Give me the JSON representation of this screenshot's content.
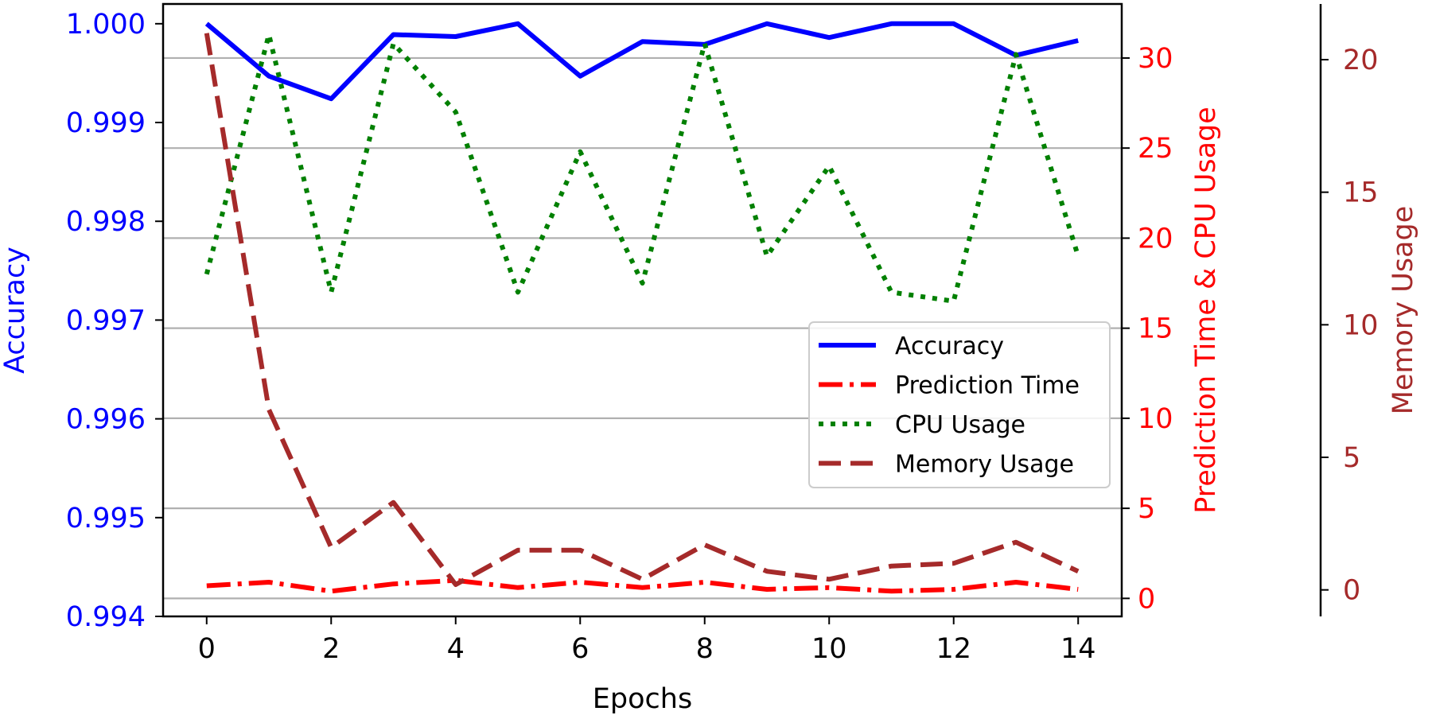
{
  "chart_data": {
    "type": "line",
    "x": [
      0,
      1,
      2,
      3,
      4,
      5,
      6,
      7,
      8,
      9,
      10,
      11,
      12,
      13,
      14
    ],
    "xlabel": "Epochs",
    "xlim": [
      -0.7,
      14.7
    ],
    "xticks": [
      0,
      2,
      4,
      6,
      8,
      10,
      12,
      14
    ],
    "grid": "horizontal, right-axis ticks",
    "legend_position": "center-right",
    "axes": {
      "left": {
        "label": "Accuracy",
        "color": "#0000ff",
        "ylim": [
          0.994,
          1.0002
        ],
        "ticks": [
          0.994,
          0.995,
          0.996,
          0.997,
          0.998,
          0.999,
          1.0
        ],
        "tick_labels": [
          "0.994",
          "0.995",
          "0.996",
          "0.997",
          "0.998",
          "0.999",
          "1.000"
        ]
      },
      "right": {
        "label": "Prediction Time & CPU Usage",
        "color": "#ff0000",
        "ylim": [
          -1.0,
          33.0
        ],
        "ticks": [
          0,
          5,
          10,
          15,
          20,
          25,
          30
        ],
        "tick_labels": [
          "0",
          "5",
          "10",
          "15",
          "20",
          "25",
          "30"
        ]
      },
      "right2": {
        "label": "Memory Usage",
        "color": "#a52a2a",
        "ylim": [
          -1.0,
          22.1
        ],
        "ticks": [
          0,
          5,
          10,
          15,
          20
        ],
        "tick_labels": [
          "0",
          "5",
          "10",
          "15",
          "20"
        ]
      }
    },
    "series": [
      {
        "name": "Accuracy",
        "axis": "left",
        "color": "#0000ff",
        "style": "solid",
        "values": [
          1.0,
          0.99947,
          0.99924,
          0.99989,
          0.99987,
          1.0,
          0.99947,
          0.99982,
          0.99979,
          1.0,
          0.99986,
          1.0,
          1.0,
          0.99968,
          0.99983
        ]
      },
      {
        "name": "Prediction Time",
        "axis": "right",
        "color": "#ff0000",
        "style": "dashdot",
        "values": [
          0.7,
          0.9,
          0.4,
          0.8,
          1.0,
          0.6,
          0.9,
          0.6,
          0.9,
          0.5,
          0.6,
          0.4,
          0.5,
          0.9,
          0.5
        ]
      },
      {
        "name": "CPU Usage",
        "axis": "right",
        "color": "#008000",
        "style": "dotted",
        "values": [
          18.0,
          31.3,
          17.0,
          30.8,
          27.0,
          17.0,
          24.8,
          17.5,
          30.8,
          19.0,
          24.0,
          17.0,
          16.5,
          30.2,
          19.0
        ]
      },
      {
        "name": "Memory Usage",
        "axis": "right2",
        "color": "#a52a2a",
        "style": "dashed",
        "values": [
          21.0,
          6.8,
          1.6,
          3.3,
          0.2,
          1.5,
          1.5,
          0.4,
          1.7,
          0.7,
          0.4,
          0.9,
          1.0,
          1.8,
          0.7
        ]
      }
    ]
  }
}
